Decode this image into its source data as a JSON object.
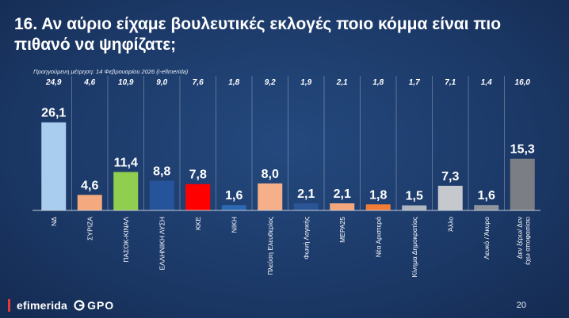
{
  "title": "16. Αν αύριο είχαμε βουλευτικές εκλογές ποιο κόμμα είναι πιο πιθανό να ψηφίζατε;",
  "previous_note": "Προηγούμενη μέτρηση: 14 Φεβρουαρίου 2026 (i-efimerida)",
  "footer": {
    "brand": "efimerida",
    "partner": "GPO",
    "page_number": "20"
  },
  "colors": {
    "background": "#1c3a69",
    "baseline": "#c8ced8"
  },
  "chart_data": {
    "type": "bar",
    "categories": [
      "ΝΔ",
      "ΣΥΡΙΖΑ",
      "ΠΑΣΟΚ-ΚΙΝΑΛ",
      "ΕΛΛΗΝΙΚΗ ΛΥΣΗ",
      "ΚΚΕ",
      "ΝΙΚΗ",
      "Πλεύση Ελευθερίας",
      "Φωνή Λογικής",
      "ΜΕΡΑ25",
      "Νέα Αριστερά",
      "Κίνημα Δημοκρατίας",
      "Άλλο",
      "Λευκό / Άκυρο",
      "Δεν ξέρω/ Δεν έχω αποφασίσει"
    ],
    "values": [
      26.1,
      4.6,
      11.4,
      8.8,
      7.8,
      1.6,
      8.0,
      2.1,
      2.1,
      1.8,
      1.5,
      7.3,
      1.6,
      15.3
    ],
    "value_labels": [
      "26,1",
      "4,6",
      "11,4",
      "8,8",
      "7,8",
      "1,6",
      "8,0",
      "2,1",
      "2,1",
      "1,8",
      "1,5",
      "7,3",
      "1,6",
      "15,3"
    ],
    "previous_values": [
      24.9,
      4.6,
      10.9,
      9.0,
      7.6,
      1.8,
      9.2,
      1.9,
      2.1,
      1.8,
      1.7,
      7.1,
      1.4,
      16.0
    ],
    "previous_labels": [
      "24,9",
      "4,6",
      "10,9",
      "9,0",
      "7,6",
      "1,8",
      "9,2",
      "1,9",
      "2,1",
      "1,8",
      "1,7",
      "7,1",
      "1,4",
      "16,0"
    ],
    "bar_colors": [
      "#a9cdee",
      "#f4a97e",
      "#8fce4e",
      "#26549b",
      "#ff0000",
      "#2d68b3",
      "#f5b08a",
      "#2a5597",
      "#f3a77d",
      "#f07c35",
      "#aeb6c2",
      "#c5c9ce",
      "#8e949b",
      "#7b7f85"
    ],
    "ylim": [
      0,
      30
    ],
    "grid": false,
    "legend": "none"
  }
}
